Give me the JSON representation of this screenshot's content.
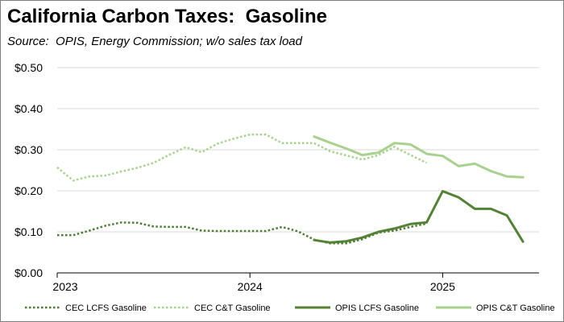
{
  "chart": {
    "title": "California Carbon Taxes:  Gasoline",
    "subtitle": "Source:  OPIS, Energy Commission; w/o sales tax load"
  },
  "chart_data": {
    "type": "line",
    "title": "California Carbon Taxes:  Gasoline",
    "subtitle": "Source:  OPIS, Energy Commission; w/o sales tax load",
    "xlabel": "",
    "ylabel": "",
    "x_axis": {
      "type": "date",
      "range": [
        "2023-01",
        "2025-07"
      ],
      "tick_labels": [
        "2023",
        "2024",
        "2025"
      ]
    },
    "y_axis": {
      "range": [
        0,
        0.5
      ],
      "tick_labels": [
        "$0.00",
        "$0.10",
        "$0.20",
        "$0.30",
        "$0.40",
        "$0.50"
      ]
    },
    "grid": "horizontal",
    "legend": "bottom",
    "series": [
      {
        "name": "CEC LCFS Gasoline",
        "color": "#4e7a34",
        "style": "dotted",
        "x": [
          "2023-01",
          "2023-02",
          "2023-03",
          "2023-04",
          "2023-05",
          "2023-06",
          "2023-07",
          "2023-08",
          "2023-09",
          "2023-10",
          "2023-11",
          "2023-12",
          "2024-01",
          "2024-02",
          "2024-03",
          "2024-04",
          "2024-05",
          "2024-06",
          "2024-07",
          "2024-08",
          "2024-09",
          "2024-10",
          "2024-11",
          "2024-12"
        ],
        "y": [
          0.092,
          0.092,
          0.103,
          0.115,
          0.123,
          0.122,
          0.113,
          0.112,
          0.112,
          0.103,
          0.102,
          0.102,
          0.102,
          0.102,
          0.112,
          0.101,
          0.081,
          0.072,
          0.072,
          0.082,
          0.098,
          0.103,
          0.112,
          0.12
        ]
      },
      {
        "name": "CEC C&T Gasoline",
        "color": "#a9d18e",
        "style": "dotted",
        "x": [
          "2023-01",
          "2023-02",
          "2023-03",
          "2023-04",
          "2023-05",
          "2023-06",
          "2023-07",
          "2023-08",
          "2023-09",
          "2023-10",
          "2023-11",
          "2023-12",
          "2024-01",
          "2024-02",
          "2024-03",
          "2024-04",
          "2024-05",
          "2024-06",
          "2024-07",
          "2024-08",
          "2024-09",
          "2024-10",
          "2024-11",
          "2024-12"
        ],
        "y": [
          0.257,
          0.225,
          0.235,
          0.237,
          0.247,
          0.256,
          0.268,
          0.288,
          0.306,
          0.294,
          0.315,
          0.327,
          0.337,
          0.337,
          0.316,
          0.316,
          0.316,
          0.296,
          0.286,
          0.276,
          0.287,
          0.307,
          0.287,
          0.268
        ]
      },
      {
        "name": "OPIS LCFS Gasoline",
        "color": "#548235",
        "style": "solid",
        "x": [
          "2024-05",
          "2024-06",
          "2024-07",
          "2024-08",
          "2024-09",
          "2024-10",
          "2024-11",
          "2024-12",
          "2025-01",
          "2025-02",
          "2025-03",
          "2025-04",
          "2025-05",
          "2025-06"
        ],
        "y": [
          0.08,
          0.074,
          0.077,
          0.086,
          0.1,
          0.108,
          0.119,
          0.123,
          0.199,
          0.184,
          0.156,
          0.156,
          0.14,
          0.076
        ]
      },
      {
        "name": "OPIS C&T Gasoline",
        "color": "#a9d18e",
        "style": "solid",
        "x": [
          "2024-05",
          "2024-06",
          "2024-07",
          "2024-08",
          "2024-09",
          "2024-10",
          "2024-11",
          "2024-12",
          "2025-01",
          "2025-02",
          "2025-03",
          "2025-04",
          "2025-05",
          "2025-06"
        ],
        "y": [
          0.332,
          0.317,
          0.303,
          0.287,
          0.293,
          0.316,
          0.313,
          0.29,
          0.285,
          0.26,
          0.266,
          0.248,
          0.235,
          0.233
        ]
      }
    ]
  }
}
